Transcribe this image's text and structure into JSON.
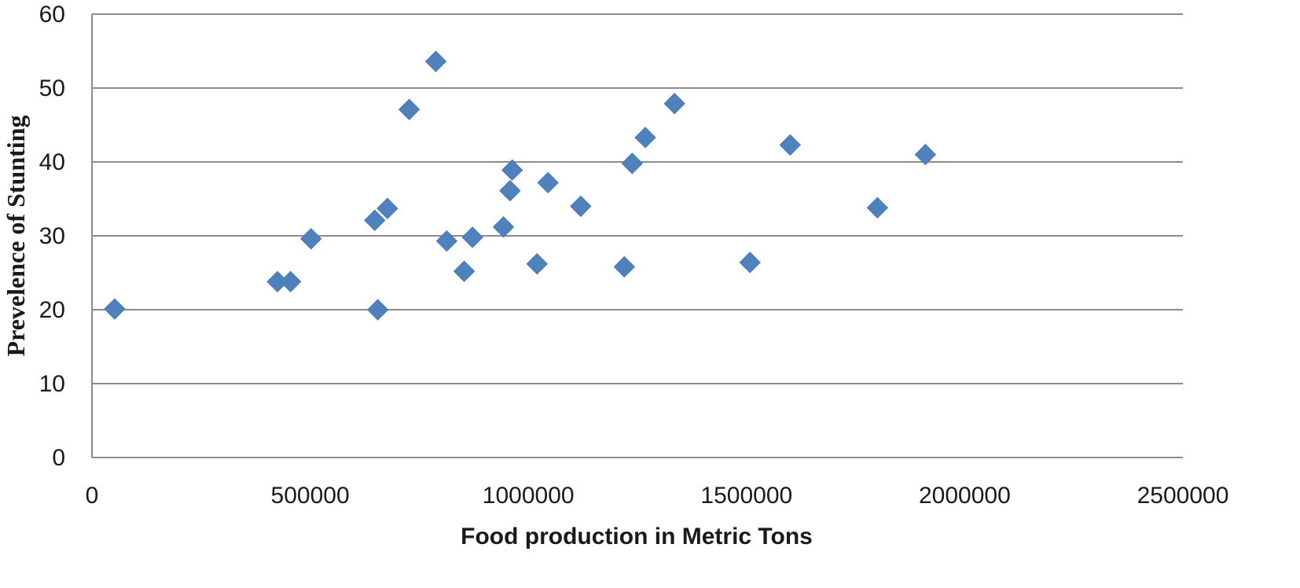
{
  "chart_data": {
    "type": "scatter",
    "title": "",
    "xlabel": "Food production in Metric Tons",
    "ylabel": "Prevelence of Stunting",
    "xlim": [
      0,
      2500000
    ],
    "ylim": [
      0,
      60
    ],
    "x_ticks": [
      0,
      500000,
      1000000,
      1500000,
      2000000,
      2500000
    ],
    "y_ticks": [
      0,
      10,
      20,
      30,
      40,
      50,
      60
    ],
    "x_tick_labels": [
      "0",
      "500000",
      "1000000",
      "1500000",
      "2000000",
      "2500000"
    ],
    "y_tick_labels": [
      "0",
      "10",
      "20",
      "30",
      "40",
      "50",
      "60"
    ],
    "grid": "horizontal",
    "legend": "none",
    "marker": "diamond",
    "color": "#4f81bd",
    "series": [
      {
        "points": [
          {
            "x": 52000,
            "y": 20.1
          },
          {
            "x": 425000,
            "y": 23.8
          },
          {
            "x": 455000,
            "y": 23.8
          },
          {
            "x": 502000,
            "y": 29.6
          },
          {
            "x": 648000,
            "y": 32.1
          },
          {
            "x": 655000,
            "y": 20.0
          },
          {
            "x": 677000,
            "y": 33.7
          },
          {
            "x": 727000,
            "y": 47.1
          },
          {
            "x": 788000,
            "y": 53.6
          },
          {
            "x": 813000,
            "y": 29.3
          },
          {
            "x": 853000,
            "y": 25.2
          },
          {
            "x": 872000,
            "y": 29.8
          },
          {
            "x": 943000,
            "y": 31.2
          },
          {
            "x": 958000,
            "y": 36.1
          },
          {
            "x": 963000,
            "y": 38.9
          },
          {
            "x": 1020000,
            "y": 26.2
          },
          {
            "x": 1045000,
            "y": 37.2
          },
          {
            "x": 1120000,
            "y": 34.0
          },
          {
            "x": 1220000,
            "y": 25.8
          },
          {
            "x": 1238000,
            "y": 39.8
          },
          {
            "x": 1268000,
            "y": 43.3
          },
          {
            "x": 1335000,
            "y": 47.9
          },
          {
            "x": 1508000,
            "y": 26.4
          },
          {
            "x": 1600000,
            "y": 42.3
          },
          {
            "x": 1800000,
            "y": 33.8
          },
          {
            "x": 1910000,
            "y": 41.0
          }
        ]
      }
    ]
  }
}
